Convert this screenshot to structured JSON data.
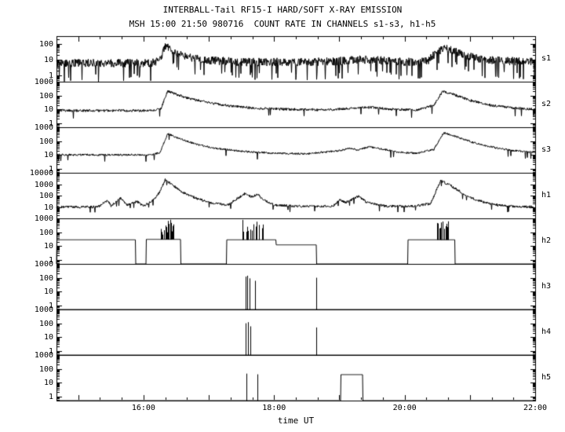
{
  "page": {
    "background": "#ffffff",
    "axis_color": "#000000",
    "text_color": "#000000"
  },
  "chart_data": {
    "type": "line",
    "y_scale": "log",
    "grid": false,
    "title": "INTERBALL-Tail RF15-I HARD/SOFT X-RAY EMISSION",
    "subtitle": "MSH 15:00 21:50 980716  COUNT RATE IN CHANNELS s1-s3, h1-h5",
    "xlabel": "time UT",
    "x_range_hours": [
      14.667,
      22
    ],
    "x_ticks": [
      {
        "hour": 16,
        "label": "16:00"
      },
      {
        "hour": 18,
        "label": "18:00"
      },
      {
        "hour": 20,
        "label": "20:00"
      },
      {
        "hour": 22,
        "label": "22:00"
      }
    ],
    "x_minor_tick_minutes": 20,
    "panels": [
      {
        "label": "s1",
        "kind": "noisy",
        "ylim": [
          0.4,
          300
        ],
        "yticks": [
          1,
          10,
          100
        ],
        "noise": 0.26,
        "downspike_prob": 0.06,
        "downspike_factor": 0.12,
        "keypoints": [
          [
            14.67,
            6
          ],
          [
            15.5,
            6
          ],
          [
            16.1,
            6
          ],
          [
            16.25,
            8
          ],
          [
            16.33,
            75
          ],
          [
            16.42,
            40
          ],
          [
            16.55,
            20
          ],
          [
            16.75,
            12
          ],
          [
            17.0,
            9
          ],
          [
            17.5,
            7
          ],
          [
            18.0,
            7
          ],
          [
            18.6,
            7
          ],
          [
            19.0,
            8
          ],
          [
            19.3,
            10
          ],
          [
            19.6,
            9
          ],
          [
            20.0,
            7
          ],
          [
            20.35,
            8
          ],
          [
            20.5,
            30
          ],
          [
            20.62,
            50
          ],
          [
            20.8,
            30
          ],
          [
            21.0,
            15
          ],
          [
            21.3,
            9
          ],
          [
            22.0,
            7
          ]
        ]
      },
      {
        "label": "s2",
        "kind": "noisy",
        "ylim": [
          0.5,
          1000
        ],
        "yticks": [
          1,
          10,
          100,
          1000
        ],
        "noise": 0.09,
        "downspike_prob": 0.015,
        "downspike_factor": 0.3,
        "keypoints": [
          [
            14.67,
            8
          ],
          [
            16.15,
            8
          ],
          [
            16.27,
            12
          ],
          [
            16.37,
            220
          ],
          [
            16.5,
            120
          ],
          [
            16.7,
            60
          ],
          [
            17.0,
            30
          ],
          [
            17.3,
            18
          ],
          [
            17.7,
            12
          ],
          [
            18.2,
            10
          ],
          [
            18.8,
            9
          ],
          [
            19.2,
            12
          ],
          [
            19.5,
            14
          ],
          [
            19.8,
            10
          ],
          [
            20.2,
            9
          ],
          [
            20.45,
            20
          ],
          [
            20.58,
            200
          ],
          [
            20.75,
            120
          ],
          [
            21.0,
            45
          ],
          [
            21.3,
            20
          ],
          [
            21.7,
            12
          ],
          [
            22.0,
            10
          ]
        ]
      },
      {
        "label": "s3",
        "kind": "noisy",
        "ylim": [
          0.5,
          1000
        ],
        "yticks": [
          1,
          10,
          100,
          1000
        ],
        "noise": 0.07,
        "downspike_prob": 0.01,
        "downspike_factor": 0.35,
        "keypoints": [
          [
            14.67,
            10
          ],
          [
            16.1,
            10
          ],
          [
            16.25,
            14
          ],
          [
            16.37,
            350
          ],
          [
            16.55,
            150
          ],
          [
            16.8,
            60
          ],
          [
            17.1,
            30
          ],
          [
            17.5,
            18
          ],
          [
            18.0,
            13
          ],
          [
            18.5,
            12
          ],
          [
            19.0,
            20
          ],
          [
            19.15,
            30
          ],
          [
            19.3,
            22
          ],
          [
            19.45,
            40
          ],
          [
            19.6,
            30
          ],
          [
            19.9,
            15
          ],
          [
            20.2,
            13
          ],
          [
            20.45,
            25
          ],
          [
            20.6,
            400
          ],
          [
            20.8,
            200
          ],
          [
            21.05,
            80
          ],
          [
            21.3,
            40
          ],
          [
            21.6,
            22
          ],
          [
            22.0,
            15
          ]
        ]
      },
      {
        "label": "h1",
        "kind": "noisy",
        "ylim": [
          1,
          10000
        ],
        "yticks": [
          10,
          100,
          1000,
          10000
        ],
        "noise": 0.11,
        "downspike_prob": 0.02,
        "downspike_factor": 0.35,
        "keypoints": [
          [
            14.67,
            10
          ],
          [
            15.3,
            10
          ],
          [
            15.45,
            40
          ],
          [
            15.5,
            12
          ],
          [
            15.65,
            60
          ],
          [
            15.75,
            15
          ],
          [
            15.9,
            30
          ],
          [
            16.0,
            12
          ],
          [
            16.15,
            40
          ],
          [
            16.25,
            200
          ],
          [
            16.33,
            2500
          ],
          [
            16.45,
            800
          ],
          [
            16.6,
            200
          ],
          [
            16.8,
            60
          ],
          [
            17.0,
            25
          ],
          [
            17.3,
            15
          ],
          [
            17.45,
            60
          ],
          [
            17.55,
            150
          ],
          [
            17.65,
            80
          ],
          [
            17.75,
            120
          ],
          [
            17.85,
            40
          ],
          [
            18.0,
            15
          ],
          [
            18.3,
            12
          ],
          [
            18.6,
            12
          ],
          [
            18.9,
            11
          ],
          [
            19.0,
            40
          ],
          [
            19.1,
            25
          ],
          [
            19.3,
            90
          ],
          [
            19.4,
            30
          ],
          [
            19.7,
            12
          ],
          [
            20.1,
            11
          ],
          [
            20.4,
            20
          ],
          [
            20.55,
            2000
          ],
          [
            20.7,
            800
          ],
          [
            20.9,
            150
          ],
          [
            21.1,
            40
          ],
          [
            21.4,
            15
          ],
          [
            21.7,
            11
          ],
          [
            22.0,
            10
          ]
        ]
      },
      {
        "label": "h2",
        "kind": "step",
        "ylim": [
          0.5,
          1000
        ],
        "yticks": [
          1,
          10,
          100,
          1000
        ],
        "segments": [
          [
            14.67,
            15.88,
            28
          ],
          [
            16.04,
            16.57,
            30
          ],
          [
            17.27,
            18.03,
            28
          ],
          [
            18.03,
            18.65,
            12
          ],
          [
            20.05,
            20.77,
            28
          ]
        ],
        "bursts": [
          [
            16.26,
            16.47,
            24,
            850
          ],
          [
            17.5,
            17.84,
            18,
            850
          ],
          [
            20.48,
            20.68,
            20,
            850
          ]
        ]
      },
      {
        "label": "h3",
        "kind": "step",
        "ylim": [
          0.5,
          1000
        ],
        "yticks": [
          1,
          10,
          100,
          1000
        ],
        "segments": [],
        "spikes": [
          [
            17.56,
            120
          ],
          [
            17.59,
            140
          ],
          [
            17.63,
            90
          ],
          [
            17.71,
            60
          ],
          [
            18.65,
            100
          ]
        ]
      },
      {
        "label": "h4",
        "kind": "step",
        "ylim": [
          0.5,
          1000
        ],
        "yticks": [
          1,
          10,
          100,
          1000
        ],
        "segments": [],
        "spikes": [
          [
            17.56,
            100
          ],
          [
            17.6,
            120
          ],
          [
            17.64,
            60
          ],
          [
            18.65,
            50
          ]
        ]
      },
      {
        "label": "h5",
        "kind": "step",
        "ylim": [
          0.5,
          1000
        ],
        "yticks": [
          1,
          10,
          100,
          1000
        ],
        "segments": [
          [
            19.02,
            19.36,
            38
          ]
        ],
        "spikes": [
          [
            17.58,
            45
          ],
          [
            17.74,
            40
          ]
        ]
      }
    ]
  }
}
